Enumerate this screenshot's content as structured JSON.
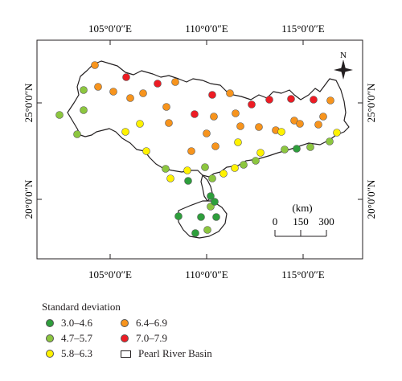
{
  "map": {
    "top_labels": [
      "105°0′0″E",
      "110°0′0″E",
      "115°0′0″E"
    ],
    "bottom_labels": [
      "105°0′0″E",
      "110°0′0″E",
      "115°0′0″E"
    ],
    "left_labels": [
      "25°0′0″N",
      "20°0′0″N"
    ],
    "right_labels": [
      "25°0′0″N",
      "20°0′0″N"
    ],
    "north_label": "N",
    "scale": {
      "title": "(km)",
      "ticks": [
        "0",
        "150",
        "300"
      ]
    }
  },
  "legend": {
    "title": "Standard deviation",
    "items": [
      {
        "label": "3.0–4.6",
        "color": "#2e9e3c"
      },
      {
        "label": "4.7–5.7",
        "color": "#8cc63f"
      },
      {
        "label": "5.8–6.3",
        "color": "#fff200"
      },
      {
        "label": "6.4–6.9",
        "color": "#f7941d"
      },
      {
        "label": "7.0–7.9",
        "color": "#ed1c24"
      },
      {
        "label": "Pearl River Basin",
        "color": "#ffffff"
      }
    ]
  }
}
